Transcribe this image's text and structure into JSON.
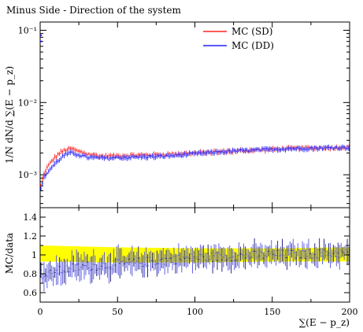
{
  "title": "Minus Side - Direction of the system",
  "colors": {
    "sd": "#ff2020",
    "dd": "#2020ff",
    "band": "#ffff00",
    "ratio_points": "#5050e0",
    "ratio_points_dark": "#101080"
  },
  "chart_data": [
    {
      "type": "scatter",
      "panel": "main",
      "title": "Minus Side - Direction of the system",
      "xlabel": "∑(E − p_z)",
      "ylabel": "1/N dN/d ∑(E − p_z)",
      "xlim": [
        0,
        200
      ],
      "ylim": [
        0.00035,
        0.13
      ],
      "log_y": true,
      "legend_position": "top-right",
      "y_ticks": [
        {
          "value": 0.1,
          "label": "10⁻¹"
        },
        {
          "value": 0.01,
          "label": "10⁻²"
        },
        {
          "value": 0.001,
          "label": "10⁻³"
        }
      ],
      "profile_x": [
        0,
        1,
        2,
        3,
        5,
        8,
        12,
        16,
        20,
        25,
        30,
        40,
        60,
        80,
        100,
        120,
        140,
        160,
        180,
        200
      ],
      "series": [
        {
          "name": "MC (SD)",
          "values": [
            0.0006,
            0.0008,
            0.00095,
            0.0011,
            0.0013,
            0.0016,
            0.00195,
            0.0022,
            0.0023,
            0.0021,
            0.00195,
            0.0018,
            0.00185,
            0.0019,
            0.002,
            0.0021,
            0.0022,
            0.0023,
            0.00235,
            0.0024
          ]
        },
        {
          "name": "MC (DD)",
          "values": [
            0.00055,
            0.0007,
            0.00085,
            0.00095,
            0.0011,
            0.0013,
            0.0016,
            0.0019,
            0.002,
            0.0019,
            0.00175,
            0.0017,
            0.00175,
            0.0018,
            0.00195,
            0.0021,
            0.0022,
            0.0023,
            0.00235,
            0.0024
          ]
        }
      ],
      "outlier_points": [
        {
          "x": 0.5,
          "y": 0.07
        },
        {
          "x": 0.5,
          "y": 0.085
        }
      ]
    },
    {
      "type": "scatter",
      "panel": "ratio",
      "xlabel": "∑(E − p_z)",
      "ylabel": "MC/data",
      "xlim": [
        0,
        200
      ],
      "ylim": [
        0.5,
        1.5
      ],
      "x_ticks": [
        0,
        50,
        100,
        150,
        200
      ],
      "y_ticks": [
        0.6,
        0.8,
        1,
        1.2,
        1.4
      ],
      "band": {
        "x": [
          0,
          50,
          100,
          150,
          200
        ],
        "low": [
          0.93,
          0.92,
          0.92,
          0.93,
          0.93
        ],
        "high": [
          1.1,
          1.08,
          1.07,
          1.07,
          1.08
        ]
      },
      "trend_x": [
        0,
        5,
        10,
        20,
        30,
        50,
        70,
        100,
        150,
        200
      ],
      "trend_y": [
        0.8,
        0.78,
        0.82,
        0.86,
        0.88,
        0.9,
        0.93,
        0.97,
        1.0,
        1.02
      ]
    }
  ]
}
